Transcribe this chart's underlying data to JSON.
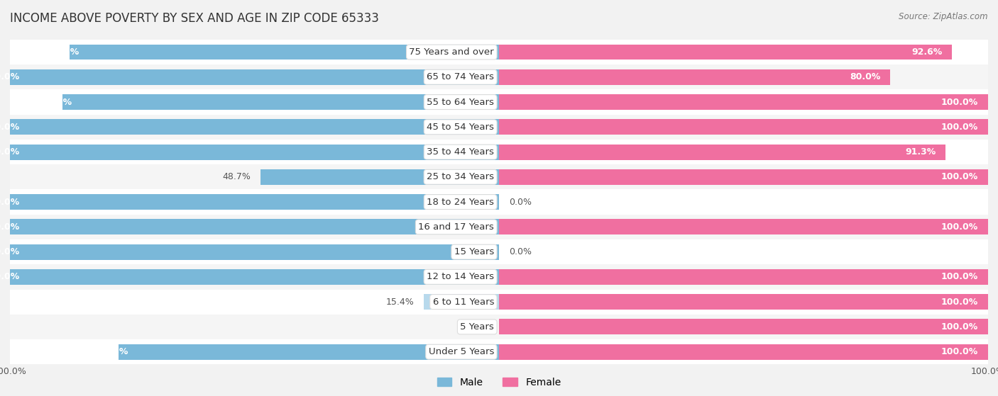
{
  "title": "INCOME ABOVE POVERTY BY SEX AND AGE IN ZIP CODE 65333",
  "source": "Source: ZipAtlas.com",
  "categories": [
    "Under 5 Years",
    "5 Years",
    "6 to 11 Years",
    "12 to 14 Years",
    "15 Years",
    "16 and 17 Years",
    "18 to 24 Years",
    "25 to 34 Years",
    "35 to 44 Years",
    "45 to 54 Years",
    "55 to 64 Years",
    "65 to 74 Years",
    "75 Years and over"
  ],
  "male": [
    77.8,
    0.0,
    15.4,
    100.0,
    100.0,
    100.0,
    100.0,
    48.7,
    100.0,
    100.0,
    89.3,
    100.0,
    87.8
  ],
  "female": [
    100.0,
    100.0,
    100.0,
    100.0,
    0.0,
    100.0,
    0.0,
    100.0,
    91.3,
    100.0,
    100.0,
    80.0,
    92.6
  ],
  "male_color": "#7ab8d9",
  "male_color_light": "#b8d9ec",
  "female_color": "#f06fa0",
  "female_color_light": "#f5a8c7",
  "row_color_odd": "#f5f5f5",
  "row_color_even": "#ffffff",
  "bar_height": 0.62,
  "title_fontsize": 12,
  "label_fontsize": 9.5,
  "value_fontsize": 9,
  "legend_fontsize": 10
}
